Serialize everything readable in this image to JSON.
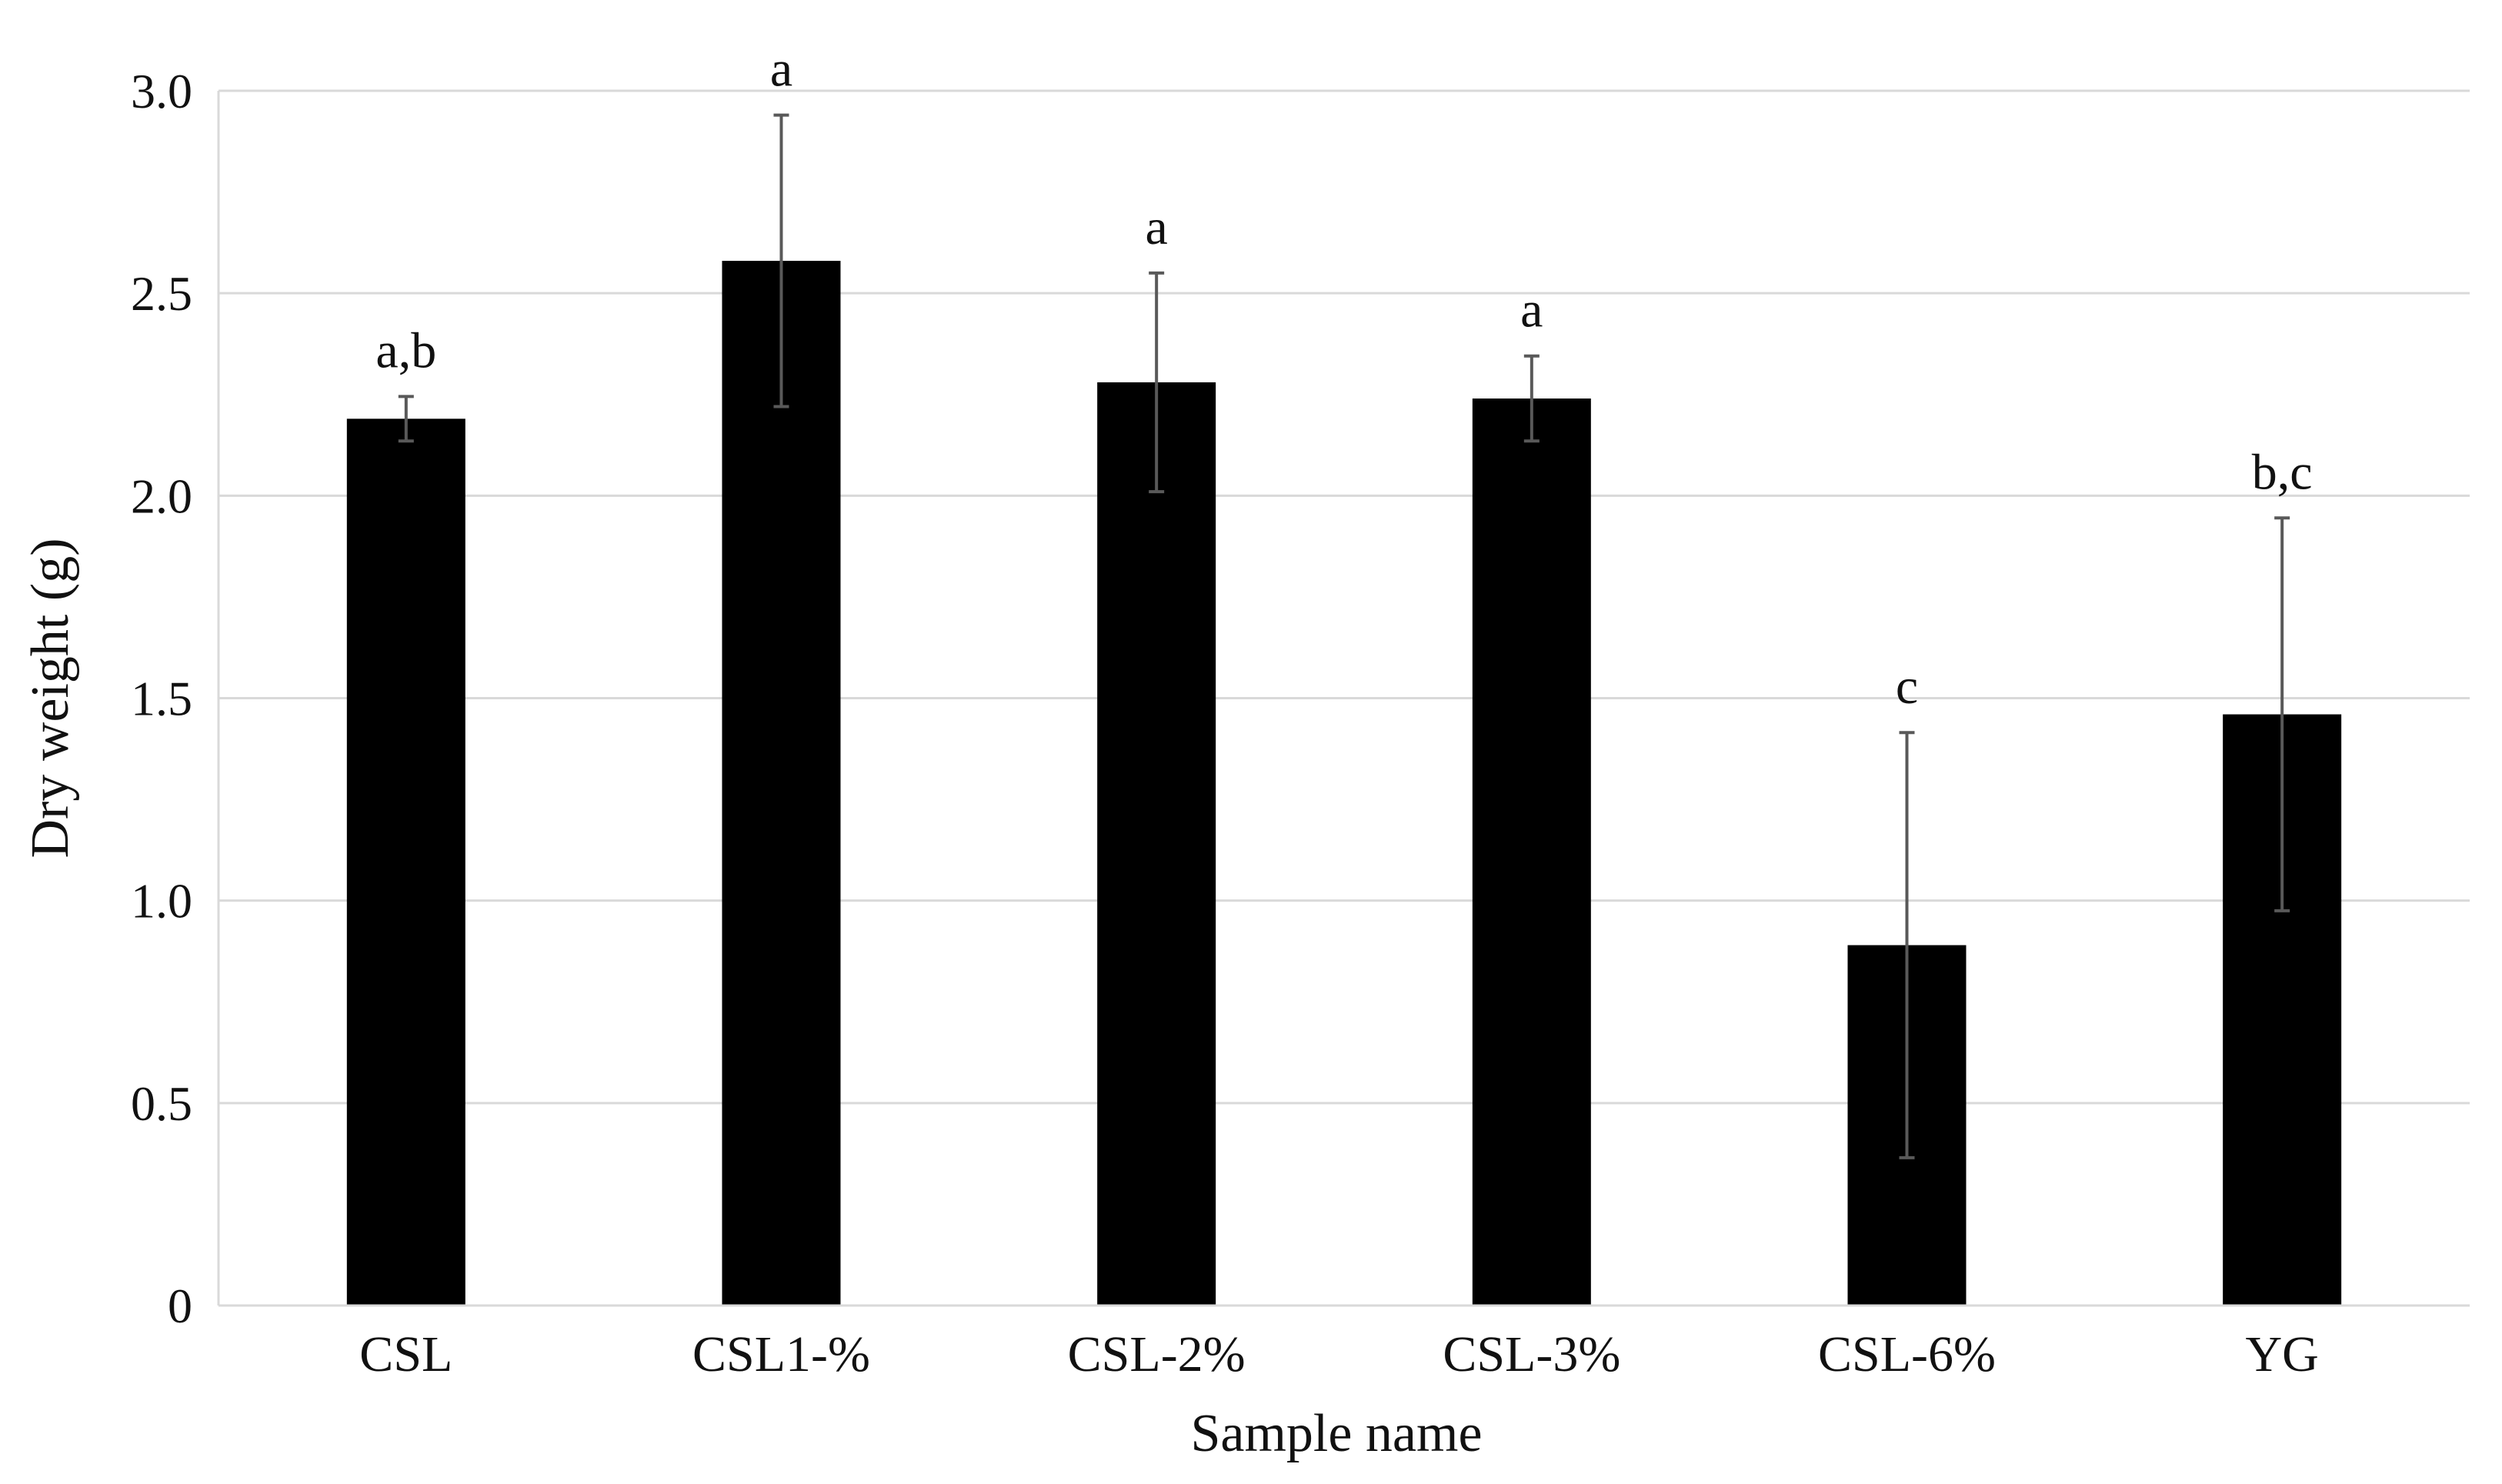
{
  "chart_data": {
    "type": "bar",
    "title": "",
    "xlabel": "Sample name",
    "ylabel": "Dry weight (g)",
    "ylim": [
      0,
      3.0
    ],
    "yticks": [
      0,
      0.5,
      1.0,
      1.5,
      2.0,
      2.5,
      3.0
    ],
    "ytick_labels": [
      "0",
      "0.5",
      "1.0",
      "1.5",
      "2.0",
      "2.5",
      "3.0"
    ],
    "grid": true,
    "bar_color": "#000000",
    "gridline_color": "#d9d9d9",
    "errorbar_color": "#595959",
    "categories": [
      "CSL",
      "CSL1-%",
      "CSL-2%",
      "CSL-3%",
      "CSL-6%",
      "YG"
    ],
    "values": [
      2.19,
      2.58,
      2.28,
      2.24,
      0.89,
      1.46
    ],
    "error_bars": [
      0.055,
      0.36,
      0.27,
      0.105,
      0.525,
      0.485
    ],
    "annotations": [
      "a,b",
      "a",
      "a",
      "a",
      "c",
      "b,c"
    ]
  }
}
